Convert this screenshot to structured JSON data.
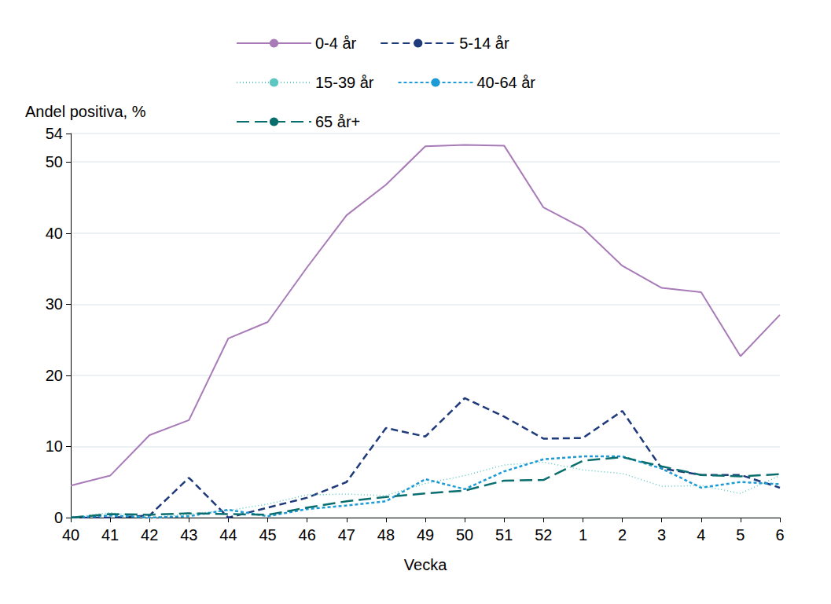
{
  "chart_data": {
    "type": "line",
    "y_label": "Andel positiva, %",
    "x_label": "Vecka",
    "categories": [
      "40",
      "41",
      "42",
      "43",
      "44",
      "45",
      "46",
      "47",
      "48",
      "49",
      "50",
      "51",
      "52",
      "1",
      "2",
      "3",
      "4",
      "5",
      "6"
    ],
    "ylim": [
      0,
      54
    ],
    "yticks": [
      0,
      10,
      20,
      30,
      40,
      50
    ],
    "grid": true,
    "legend": "top",
    "series": [
      {
        "name": "0-4 år",
        "color": "#a87bb8",
        "line_style": "solid",
        "values": [
          4.5,
          5.9,
          11.6,
          13.7,
          25.2,
          27.5,
          35.2,
          42.5,
          46.8,
          52.2,
          52.4,
          52.3,
          43.6,
          40.7,
          35.4,
          32.3,
          31.7,
          22.7,
          28.5
        ]
      },
      {
        "name": "5-14 år",
        "color": "#1f3a7a",
        "line_style": "dashed",
        "values": [
          0,
          0,
          0.3,
          5.6,
          0,
          1.4,
          2.8,
          5.0,
          12.6,
          11.4,
          16.8,
          14.2,
          11.1,
          11.2,
          15.0,
          6.9,
          6.0,
          6.0,
          4.2
        ]
      },
      {
        "name": "15-39 år",
        "color": "#5cc7c0",
        "line_style": "dotted",
        "values": [
          0,
          0.7,
          0,
          0.5,
          1.0,
          1.9,
          3.2,
          3.3,
          3.1,
          4.8,
          5.9,
          7.4,
          7.8,
          6.7,
          6.2,
          4.4,
          4.5,
          3.4,
          5.9
        ]
      },
      {
        "name": "40-64 år",
        "color": "#1d9bd6",
        "line_style": "short_dashed",
        "values": [
          0,
          0.3,
          0,
          0.2,
          1.1,
          0.2,
          1.2,
          1.7,
          2.3,
          5.4,
          4.0,
          6.5,
          8.2,
          8.6,
          8.6,
          6.9,
          4.2,
          5.0,
          4.7
        ]
      },
      {
        "name": "65 år+",
        "color": "#0b6e6e",
        "line_style": "long_dashed",
        "values": [
          0,
          0.5,
          0.4,
          0.6,
          0.5,
          0.4,
          1.4,
          2.3,
          2.9,
          3.4,
          3.8,
          5.2,
          5.3,
          8.0,
          8.5,
          7.2,
          6.0,
          5.8,
          6.1
        ]
      }
    ]
  }
}
